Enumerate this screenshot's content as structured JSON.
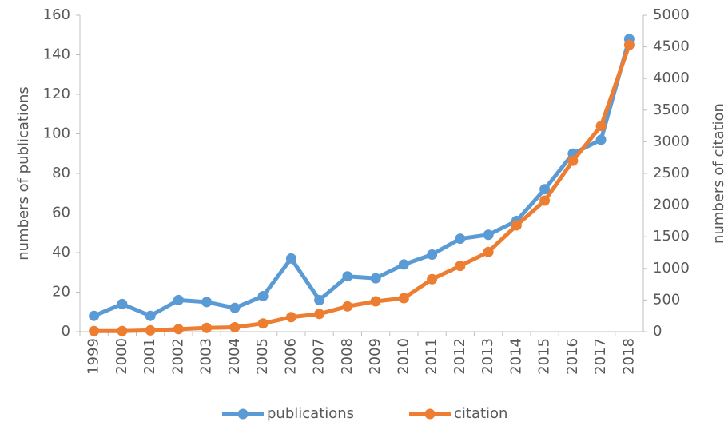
{
  "chart_data": {
    "type": "line",
    "categories": [
      "1999",
      "2000",
      "2001",
      "2002",
      "2003",
      "2004",
      "2005",
      "2006",
      "2007",
      "2008",
      "2009",
      "2010",
      "2011",
      "2012",
      "2013",
      "2014",
      "2015",
      "2016",
      "2017",
      "2018"
    ],
    "series": [
      {
        "name": "publications",
        "color": "#5b9bd5",
        "values": [
          8,
          14,
          8,
          16,
          15,
          12,
          18,
          37,
          16,
          28,
          27,
          34,
          39,
          47,
          49,
          56,
          72,
          90,
          97,
          148
        ]
      },
      {
        "name": "citation",
        "color": "#ed7d31",
        "axis": "y2",
        "values": [
          10,
          10,
          20,
          40,
          60,
          70,
          130,
          230,
          280,
          400,
          480,
          530,
          830,
          1040,
          1260,
          1680,
          2070,
          2700,
          3250,
          4530
        ]
      }
    ],
    "ylabel": "numbers of  publications",
    "y2label": "numbers of  citation",
    "ylim": [
      0,
      160
    ],
    "yticks": [
      0,
      20,
      40,
      60,
      80,
      100,
      120,
      140,
      160
    ],
    "y2lim": [
      0,
      5000
    ],
    "y2ticks": [
      0,
      500,
      1000,
      1500,
      2000,
      2500,
      3000,
      3500,
      4000,
      4500,
      5000
    ],
    "legend": "bottom"
  }
}
